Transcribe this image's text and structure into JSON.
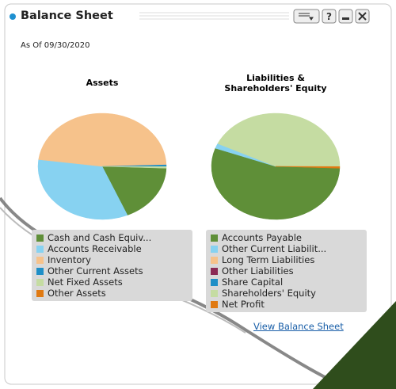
{
  "header": {
    "title": "Balance Sheet"
  },
  "as_of": "As Of 09/30/2020",
  "link": "View Balance Sheet",
  "chart_data": [
    {
      "type": "pie",
      "title": "Assets",
      "categories": [
        "Cash and Cash Equiv...",
        "Accounts Receivable",
        "Inventory",
        "Other Current Assets",
        "Net Fixed Assets",
        "Other Assets"
      ],
      "values": [
        18,
        33.5,
        47.5,
        0.5,
        0.5,
        0
      ],
      "colors": [
        "#5f8f38",
        "#87d2f1",
        "#f6c28b",
        "#1f8fc7",
        "#c5dca2",
        "#e07a12"
      ]
    },
    {
      "type": "pie",
      "title": "Liabilities & Shareholders' Equity",
      "categories": [
        "Accounts Payable",
        "Other Current Liabilit...",
        "Long Term Liabilities",
        "Other Liabilities",
        "Share Capital",
        "Shareholders' Equity",
        "Net Profit"
      ],
      "values": [
        55,
        1.5,
        0,
        0,
        0,
        43,
        0.5
      ],
      "colors": [
        "#5f8f38",
        "#87d2f1",
        "#f6c28b",
        "#8b2a55",
        "#1f8fc7",
        "#c5dca2",
        "#e07a12"
      ]
    }
  ]
}
